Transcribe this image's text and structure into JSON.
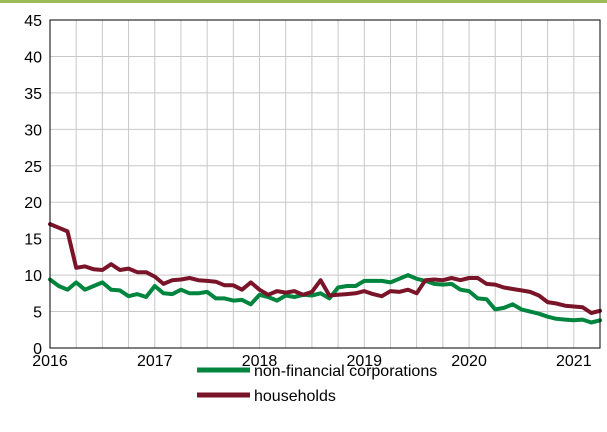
{
  "chart_data": {
    "type": "line",
    "title": "",
    "xlabel": "",
    "ylabel": "",
    "ylim": [
      0,
      45
    ],
    "yticks": [
      0,
      5,
      10,
      15,
      20,
      25,
      30,
      35,
      40,
      45
    ],
    "xlim": [
      2016,
      2021.25
    ],
    "xticks": [
      2016,
      2017,
      2018,
      2019,
      2020,
      2021
    ],
    "xtick_labels": [
      "2016",
      "2017",
      "2018",
      "2019",
      "2020",
      "2021"
    ],
    "grid": true,
    "legend_position": "bottom",
    "series": [
      {
        "name": "non-financial corporations",
        "color": "#00853f",
        "x": [
          2016.0,
          2016.083,
          2016.167,
          2016.25,
          2016.333,
          2016.417,
          2016.5,
          2016.583,
          2016.667,
          2016.75,
          2016.833,
          2016.917,
          2017.0,
          2017.083,
          2017.167,
          2017.25,
          2017.333,
          2017.417,
          2017.5,
          2017.583,
          2017.667,
          2017.75,
          2017.833,
          2017.917,
          2018.0,
          2018.083,
          2018.167,
          2018.25,
          2018.333,
          2018.417,
          2018.5,
          2018.583,
          2018.667,
          2018.75,
          2018.833,
          2018.917,
          2019.0,
          2019.083,
          2019.167,
          2019.25,
          2019.333,
          2019.417,
          2019.5,
          2019.583,
          2019.667,
          2019.75,
          2019.833,
          2019.917,
          2020.0,
          2020.083,
          2020.167,
          2020.25,
          2020.333,
          2020.417,
          2020.5,
          2020.583,
          2020.667,
          2020.75,
          2020.833,
          2020.917,
          2021.0,
          2021.083,
          2021.167,
          2021.25
        ],
        "values": [
          9.4,
          8.5,
          8.0,
          9.0,
          8.0,
          8.5,
          9.0,
          8.0,
          7.9,
          7.1,
          7.4,
          7.0,
          8.5,
          7.5,
          7.4,
          8.0,
          7.5,
          7.5,
          7.7,
          6.8,
          6.8,
          6.5,
          6.6,
          6.0,
          7.3,
          7.0,
          6.5,
          7.2,
          7.0,
          7.3,
          7.2,
          7.5,
          6.8,
          8.3,
          8.5,
          8.5,
          9.2,
          9.2,
          9.2,
          9.0,
          9.5,
          10.0,
          9.5,
          9.2,
          8.8,
          8.7,
          8.8,
          8.0,
          7.8,
          6.8,
          6.7,
          5.3,
          5.5,
          6.0,
          5.3,
          5.0,
          4.7,
          4.3,
          4.0,
          3.9,
          3.8,
          3.9,
          3.5,
          3.8
        ]
      },
      {
        "name": "households",
        "color": "#7a1428",
        "x": [
          2016.0,
          2016.083,
          2016.167,
          2016.25,
          2016.333,
          2016.417,
          2016.5,
          2016.583,
          2016.667,
          2016.75,
          2016.833,
          2016.917,
          2017.0,
          2017.083,
          2017.167,
          2017.25,
          2017.333,
          2017.417,
          2017.5,
          2017.583,
          2017.667,
          2017.75,
          2017.833,
          2017.917,
          2018.0,
          2018.083,
          2018.167,
          2018.25,
          2018.333,
          2018.417,
          2018.5,
          2018.583,
          2018.667,
          2018.75,
          2018.833,
          2018.917,
          2019.0,
          2019.083,
          2019.167,
          2019.25,
          2019.333,
          2019.417,
          2019.5,
          2019.583,
          2019.667,
          2019.75,
          2019.833,
          2019.917,
          2020.0,
          2020.083,
          2020.167,
          2020.25,
          2020.333,
          2020.417,
          2020.5,
          2020.583,
          2020.667,
          2020.75,
          2020.833,
          2020.917,
          2021.0,
          2021.083,
          2021.167,
          2021.25
        ],
        "values": [
          17.0,
          16.5,
          16.0,
          11.0,
          11.2,
          10.8,
          10.7,
          11.5,
          10.7,
          10.9,
          10.4,
          10.4,
          9.8,
          8.8,
          9.3,
          9.4,
          9.6,
          9.3,
          9.2,
          9.1,
          8.6,
          8.6,
          8.0,
          9.0,
          8.0,
          7.3,
          7.8,
          7.6,
          7.8,
          7.3,
          7.7,
          9.3,
          7.2,
          7.3,
          7.4,
          7.5,
          7.8,
          7.4,
          7.1,
          7.8,
          7.7,
          8.0,
          7.5,
          9.3,
          9.4,
          9.3,
          9.6,
          9.3,
          9.6,
          9.6,
          8.8,
          8.7,
          8.3,
          8.1,
          7.9,
          7.7,
          7.2,
          6.3,
          6.1,
          5.8,
          5.7,
          5.6,
          4.8,
          5.1
        ]
      }
    ]
  }
}
